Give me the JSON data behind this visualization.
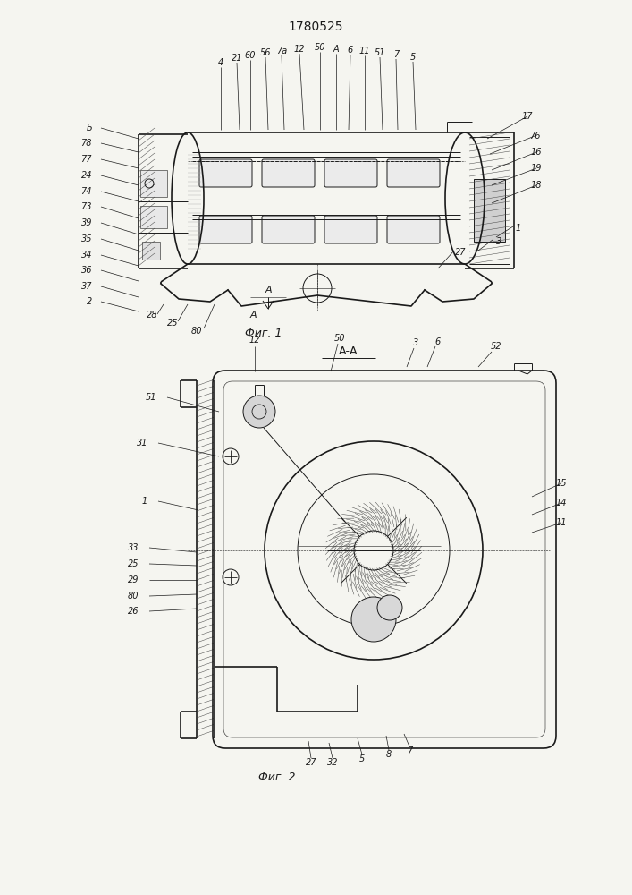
{
  "title": "1780525",
  "fig1_caption": "Фиг. 1",
  "fig2_caption": "Фиг. 2",
  "bg_color": "#f5f5f0",
  "line_color": "#1a1a1a",
  "hatch_color": "#444444",
  "title_fontsize": 10,
  "label_fontsize": 7,
  "caption_fontsize": 9
}
